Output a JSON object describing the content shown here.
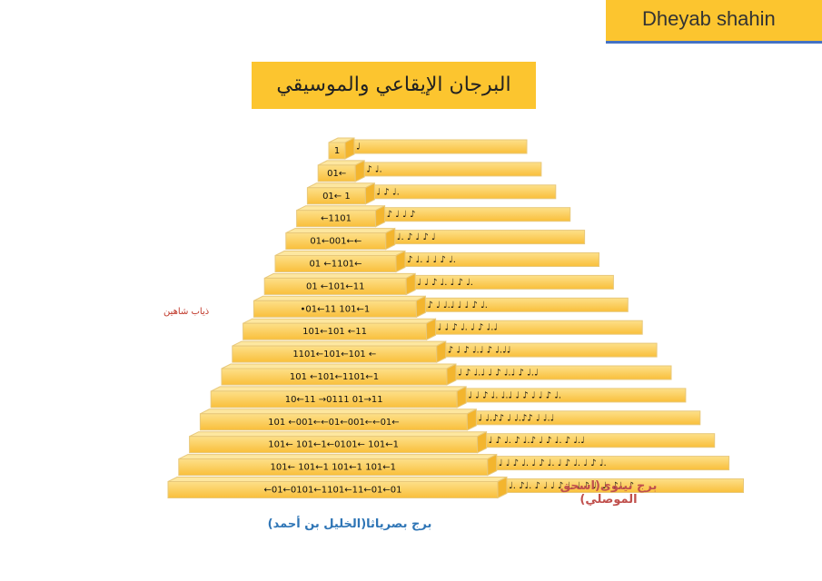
{
  "header": {
    "name": "Dheyab shahin"
  },
  "title": "البرجان الإيقاعي والموسيقي",
  "side_note": "ذياب شاهين",
  "rows": {
    "left": [
      "1",
      "01←",
      "01← 1",
      "←1101",
      "01←001←←",
      "01 ←1101←",
      "01 ←101←11",
      "•01←11 101←1",
      "101←101 ←11",
      "1101←101←101 ←",
      "101 ←101←1101←1",
      "10←11 →0111 01→11",
      "101 ←001←←01←001←←01←",
      "101← 101←1←0101← 101←1",
      "101← 101←1 101←1 101←1",
      "←01←0101←1101←11←01←01"
    ],
    "right": [
      "♩",
      "♪ ♩.",
      "♩ ♪ ♩.",
      "♪ ♩ ♩ ♪",
      "♩. ♪ ♩ ♪ ♩",
      "♪ ♩. ♩ ♩ ♪ ♩.",
      "♩ ♩ ♪ ♩. ♩ ♪ ♩.",
      "♪ ♩ ♩.♩ ♩ ♩ ♪ ♩.",
      "♩ ♩ ♪ ♩. ♩ ♪ ♩.♩",
      "♪ ♩ ♪ ♩.♩ ♪ ♩.♩♩",
      "♩ ♪ ♩.♩ ♩ ♪ ♩.♩ ♪ ♩.♩",
      "♩ ♩ ♪ ♩. ♩.♩ ♩ ♪ ♩ ♩ ♪ ♩.",
      "♩ ♩.♪♪ ♩ ♩.♪♪ ♩ ♩.♩",
      "♩ ♪ ♩. ♪ ♩.♪ ♩ ♪ ♩. ♪ ♩.♩",
      "♩ ♩ ♪ ♩. ♩ ♪ ♩. ♩ ♪ ♩. ♩ ♪ ♩.",
      "♩. ♪♩. ♪ ♩ ♩ ♪ ♩. ♩ ♪ ♩. ♩. ♪♩. ♪"
    ]
  },
  "captions": {
    "left": "برج بصرياثا(الخليل بن أحمد)",
    "right": [
      "برج نينوى(اسحق",
      "الموصلي)"
    ]
  }
}
